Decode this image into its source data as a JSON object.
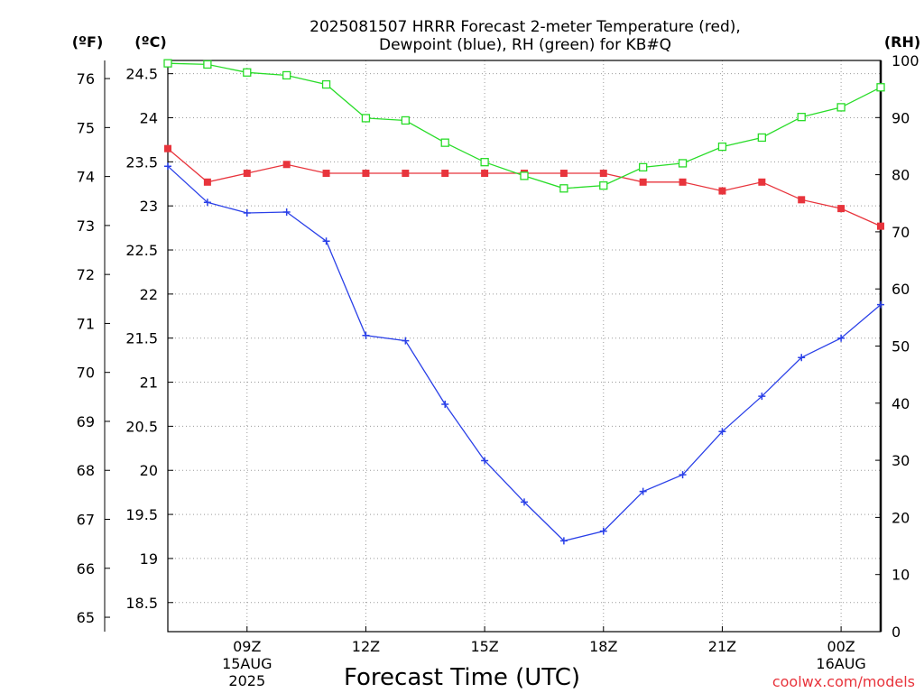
{
  "chart_data": {
    "type": "line",
    "title": "2025081507 HRRR Forecast 2-meter Temperature (red),",
    "subtitle": "Dewpoint (blue), RH (green) for KB#Q",
    "xlabel": "Forecast Time (UTC)",
    "credit": "coolwx.com/models",
    "units": {
      "fahrenheit": "(ºF)",
      "celsius": "(ºC)",
      "rh": "(RH)"
    },
    "x_hours": [
      7,
      8,
      9,
      10,
      11,
      12,
      13,
      14,
      15,
      16,
      17,
      18,
      19,
      20,
      21,
      22,
      23,
      24,
      25
    ],
    "xlim": [
      7,
      25
    ],
    "x_ticks": [
      {
        "hour": 9,
        "lines": [
          "09Z",
          "15AUG",
          "2025"
        ]
      },
      {
        "hour": 12,
        "lines": [
          "12Z"
        ]
      },
      {
        "hour": 15,
        "lines": [
          "15Z"
        ]
      },
      {
        "hour": 18,
        "lines": [
          "18Z"
        ]
      },
      {
        "hour": 21,
        "lines": [
          "21Z"
        ]
      },
      {
        "hour": 24,
        "lines": [
          "00Z",
          "16AUG"
        ]
      }
    ],
    "left_axis_c": {
      "ylim": [
        18.17,
        24.65
      ],
      "ticks": [
        "18.5",
        "19",
        "19.5",
        "20",
        "20.5",
        "21",
        "21.5",
        "22",
        "22.5",
        "23",
        "23.5",
        "24",
        "24.5"
      ]
    },
    "left_axis_f": {
      "ticks": [
        "65",
        "66",
        "67",
        "68",
        "69",
        "70",
        "71",
        "72",
        "73",
        "74",
        "75",
        "76"
      ]
    },
    "right_axis_rh": {
      "ylim": [
        0,
        100
      ],
      "ticks": [
        "0",
        "10",
        "20",
        "30",
        "40",
        "50",
        "60",
        "70",
        "80",
        "90",
        "100"
      ]
    },
    "grid": true,
    "series": [
      {
        "name": "Temperature",
        "color": "#e8343c",
        "marker": "filled-square",
        "axis": "celsius",
        "values": [
          23.65,
          23.27,
          23.37,
          23.47,
          23.37,
          23.37,
          23.37,
          23.37,
          23.37,
          23.37,
          23.37,
          23.37,
          23.27,
          23.27,
          23.17,
          23.27,
          23.07,
          22.97,
          22.77
        ]
      },
      {
        "name": "Dewpoint",
        "color": "#2a40e8",
        "marker": "plus",
        "axis": "celsius",
        "values": [
          23.45,
          23.04,
          22.92,
          22.93,
          22.6,
          21.53,
          21.47,
          20.75,
          20.11,
          19.64,
          19.2,
          19.31,
          19.76,
          19.95,
          20.44,
          20.84,
          21.28,
          21.5,
          21.88
        ]
      },
      {
        "name": "RH",
        "color": "#28dc28",
        "marker": "open-square",
        "axis": "rh",
        "values": [
          99.5,
          99.3,
          97.9,
          97.4,
          95.8,
          89.9,
          89.5,
          85.6,
          82.2,
          79.8,
          77.6,
          78.1,
          81.3,
          82.0,
          84.9,
          86.5,
          90.1,
          91.8,
          95.3
        ]
      }
    ]
  }
}
